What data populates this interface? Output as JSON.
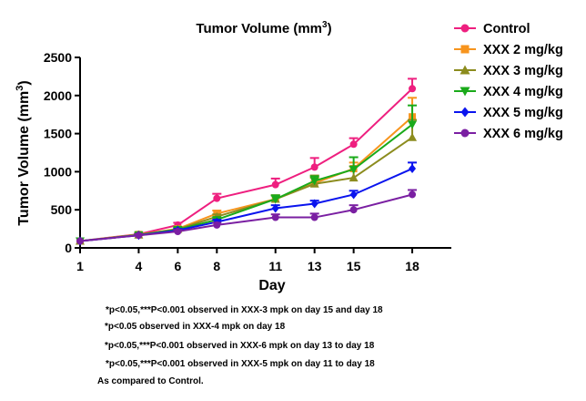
{
  "chart_data": {
    "type": "line",
    "title": "Tumor Volume (mm",
    "title_sup": "3",
    "title_suffix": ")",
    "xlabel": "Day",
    "ylabel": "Tumor Volume (mm",
    "ylabel_sup": "3",
    "ylabel_suffix": ")",
    "x": [
      1,
      4,
      6,
      8,
      11,
      13,
      15,
      18
    ],
    "x_tick_labels": [
      "1",
      "4",
      "6",
      "8",
      "11",
      "13",
      "15",
      "18"
    ],
    "xlim": [
      1,
      20
    ],
    "ylim": [
      0,
      2500
    ],
    "y_ticks": [
      0,
      500,
      1000,
      1500,
      2000,
      2500
    ],
    "y_tick_labels": [
      "0",
      "500",
      "1000",
      "1500",
      "2000",
      "2500"
    ],
    "legend_position": "right",
    "grid": false,
    "series": [
      {
        "name": "Control",
        "color": "#ee1f7f",
        "marker": "circle",
        "values": [
          90,
          180,
          300,
          650,
          830,
          1060,
          1360,
          2090
        ],
        "errors": [
          0,
          15,
          30,
          60,
          80,
          120,
          80,
          130
        ]
      },
      {
        "name": "XXX 2 mg/kg",
        "color": "#f7941d",
        "marker": "square",
        "values": [
          90,
          175,
          250,
          450,
          640,
          850,
          1040,
          1720
        ],
        "errors": [
          0,
          15,
          25,
          40,
          50,
          70,
          80,
          250
        ]
      },
      {
        "name": "XXX 3 mg/kg",
        "color": "#8c8c1e",
        "marker": "triangle-up",
        "values": [
          90,
          170,
          245,
          410,
          640,
          840,
          920,
          1450
        ],
        "errors": [
          0,
          15,
          25,
          30,
          50,
          110,
          150,
          230
        ]
      },
      {
        "name": "XXX 4 mg/kg",
        "color": "#1aaa1a",
        "marker": "triangle-down",
        "values": [
          90,
          170,
          240,
          370,
          640,
          880,
          1030,
          1620
        ],
        "errors": [
          0,
          15,
          25,
          30,
          50,
          60,
          160,
          250
        ]
      },
      {
        "name": "XXX 5 mg/kg",
        "color": "#0a14ee",
        "marker": "diamond",
        "values": [
          90,
          165,
          230,
          340,
          520,
          580,
          700,
          1040
        ],
        "errors": [
          0,
          15,
          20,
          30,
          40,
          40,
          50,
          80
        ]
      },
      {
        "name": "XXX 6 mg/kg",
        "color": "#7a1fa2",
        "marker": "circle",
        "values": [
          90,
          165,
          215,
          300,
          400,
          400,
          500,
          700
        ],
        "errors": [
          0,
          15,
          20,
          30,
          40,
          50,
          60,
          60
        ]
      }
    ],
    "footnotes": [
      "*p<0.05,***P<0.001 observed in XXX-3 mpk  on day 15 and day 18",
      "*p<0.05  observed in XXX-4 mpk on day 18",
      "*p<0.05,***P<0.001 observed in XXX-6 mpk  on day 13  to day 18",
      "*p<0.05,***P<0.001 observed in XXX-5 mpk  on day 11 to  day 18",
      "As compared to Control."
    ]
  }
}
